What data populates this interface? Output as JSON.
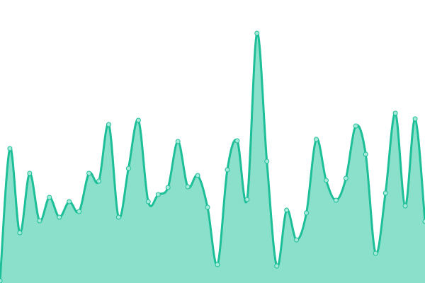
{
  "chart_data": {
    "type": "area",
    "title": "",
    "xlabel": "",
    "ylabel": "",
    "ylim": [
      0,
      400
    ],
    "grid": false,
    "axes_visible": false,
    "curve": "smooth",
    "colors": {
      "line": "#1dbf98",
      "fill": "#8be0cc",
      "point_fill": "#a5ead9",
      "point_stroke": "#1dbf98"
    },
    "series": [
      {
        "values": [
          3,
          190,
          71,
          155,
          88,
          121,
          93,
          115,
          101,
          155,
          144,
          224,
          93,
          162,
          230,
          115,
          125,
          135,
          200,
          136,
          152,
          107,
          26,
          160,
          201,
          118,
          353,
          172,
          24,
          103,
          61,
          99,
          203,
          145,
          117,
          148,
          222,
          182,
          42,
          127,
          240,
          109,
          232,
          87
        ]
      }
    ]
  }
}
